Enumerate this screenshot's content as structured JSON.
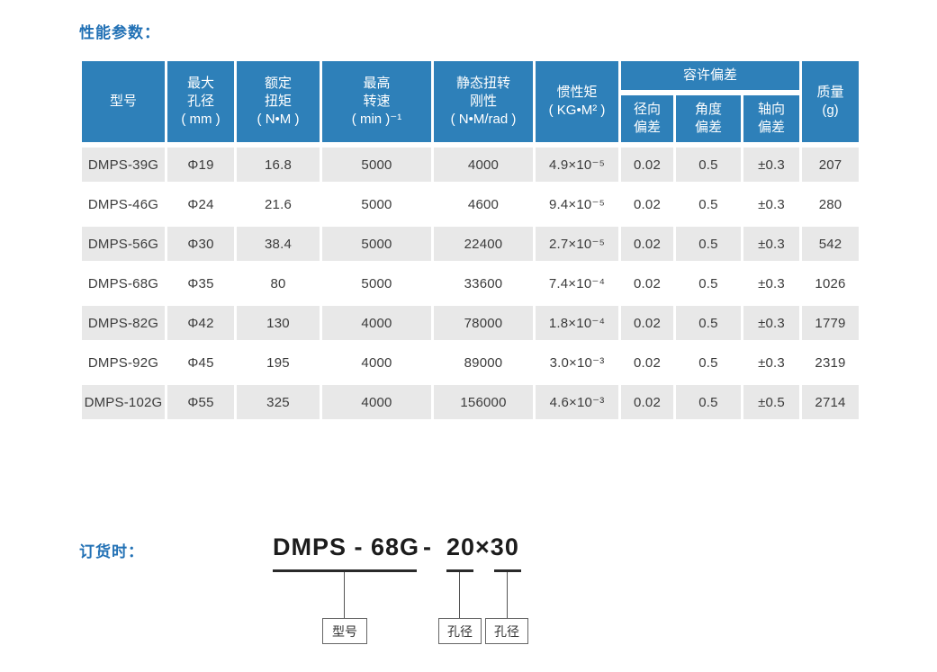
{
  "page": {
    "title": "性能参数：",
    "order_label": "订货时："
  },
  "colors": {
    "header_blue": "#2E80B9",
    "title_blue": "#2271B5",
    "row_gray": "#E8E8E8",
    "body_text": "#3B3B3B"
  },
  "table": {
    "group_header": "容许偏差",
    "columns": [
      {
        "label": "型号"
      },
      {
        "label": "最大\n孔径\n( mm )"
      },
      {
        "label": "额定\n扭矩\n( N•M )"
      },
      {
        "label": "最高\n转速\n( min )⁻¹"
      },
      {
        "label": "静态扭转\n刚性\n( N•M/rad )"
      },
      {
        "label": "惯性矩\n( KG•M² )"
      },
      {
        "label": "径向\n偏差"
      },
      {
        "label": "角度\n偏差"
      },
      {
        "label": "轴向\n偏差"
      },
      {
        "label": "质量\n(g)"
      }
    ],
    "rows": [
      [
        "DMPS-39G",
        "Φ19",
        "16.8",
        "5000",
        "4000",
        "4.9×10⁻⁵",
        "0.02",
        "0.5",
        "±0.3",
        "207"
      ],
      [
        "DMPS-46G",
        "Φ24",
        "21.6",
        "5000",
        "4600",
        "9.4×10⁻⁵",
        "0.02",
        "0.5",
        "±0.3",
        "280"
      ],
      [
        "DMPS-56G",
        "Φ30",
        "38.4",
        "5000",
        "22400",
        "2.7×10⁻⁵",
        "0.02",
        "0.5",
        "±0.3",
        "542"
      ],
      [
        "DMPS-68G",
        "Φ35",
        "80",
        "5000",
        "33600",
        "7.4×10⁻⁴",
        "0.02",
        "0.5",
        "±0.3",
        "1026"
      ],
      [
        "DMPS-82G",
        "Φ42",
        "130",
        "4000",
        "78000",
        "1.8×10⁻⁴",
        "0.02",
        "0.5",
        "±0.3",
        "1779"
      ],
      [
        "DMPS-92G",
        "Φ45",
        "195",
        "4000",
        "89000",
        "3.0×10⁻³",
        "0.02",
        "0.5",
        "±0.3",
        "2319"
      ],
      [
        "DMPS-102G",
        "Φ55",
        "325",
        "4000",
        "156000",
        "4.6×10⁻³",
        "0.02",
        "0.5",
        "±0.5",
        "2714"
      ]
    ]
  },
  "order": {
    "code_model": "DMPS - 68G",
    "code_dash": "-",
    "code_bores": "20×30",
    "box_model": "型号",
    "box_bore1": "孔径",
    "box_bore2": "孔径"
  }
}
